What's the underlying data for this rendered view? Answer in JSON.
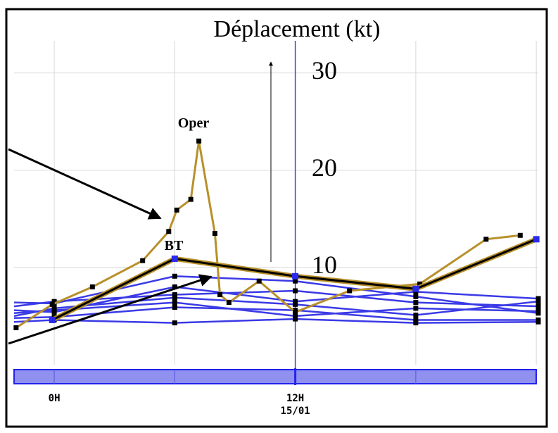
{
  "chart_data": {
    "type": "line",
    "title": "Déplacement (kt)",
    "xlim": [
      -2,
      24.1
    ],
    "ylim": [
      0,
      33.3
    ],
    "xticks": [
      {
        "value": 0,
        "label": "0H"
      },
      {
        "value": 12,
        "label": "12H"
      }
    ],
    "x_sublabel": "15/01",
    "xgrid": [
      0,
      6,
      18,
      24
    ],
    "current_time": 12,
    "yticks": [
      10,
      20,
      30
    ],
    "grid": true,
    "series": [
      {
        "name": "Oper",
        "color": "#b8902a",
        "x": [
          -1.9,
          -0.1,
          1.9,
          4.4,
          5.7,
          6.1,
          6.8,
          7.2,
          8.0,
          8.25,
          8.7,
          10.2,
          12,
          14.7,
          18.2,
          21.5,
          23.2
        ],
        "values": [
          3.8,
          6.2,
          8.0,
          10.7,
          13.7,
          15.9,
          17.0,
          23.0,
          13.5,
          7.2,
          6.4,
          8.6,
          5.4,
          7.6,
          8.3,
          12.9,
          13.3
        ]
      },
      {
        "name": "BT",
        "color": "#000000",
        "x": [
          -0.1,
          6,
          12,
          18,
          24
        ],
        "values": [
          4.6,
          10.9,
          9.1,
          7.8,
          12.9
        ]
      },
      {
        "color": "#3a3ae6",
        "x": [
          -2,
          0,
          6,
          12,
          18,
          24.1
        ],
        "values": [
          6.4,
          6.3,
          9.1,
          8.6,
          7.0,
          5.3
        ]
      },
      {
        "color": "#3a3ae6",
        "x": [
          -2,
          0,
          6,
          12,
          18,
          24.1
        ],
        "values": [
          6.0,
          6.5,
          7.2,
          7.6,
          6.4,
          6.0
        ]
      },
      {
        "color": "#3a3ae6",
        "x": [
          -2,
          0,
          6,
          12,
          18,
          24.1
        ],
        "values": [
          5.6,
          5.4,
          8.0,
          6.5,
          7.5,
          6.8
        ]
      },
      {
        "color": "#3a3ae6",
        "x": [
          -2,
          0,
          6,
          12,
          18,
          24.1
        ],
        "values": [
          5.3,
          5.6,
          6.4,
          5.0,
          5.8,
          5.5
        ]
      },
      {
        "color": "#3a3ae6",
        "x": [
          -2,
          0,
          6,
          12,
          18,
          24.1
        ],
        "values": [
          4.8,
          4.9,
          5.9,
          5.6,
          4.6,
          4.6
        ]
      },
      {
        "color": "#3a3ae6",
        "x": [
          -2,
          0,
          6,
          12,
          18,
          24.1
        ],
        "values": [
          4.4,
          4.6,
          4.3,
          4.7,
          4.3,
          4.4
        ]
      },
      {
        "color": "#3a3ae6",
        "x": [
          -2,
          0,
          6,
          12,
          18,
          24.1
        ],
        "values": [
          5.0,
          5.8,
          6.9,
          6.2,
          5.1,
          6.5
        ]
      }
    ]
  }
}
